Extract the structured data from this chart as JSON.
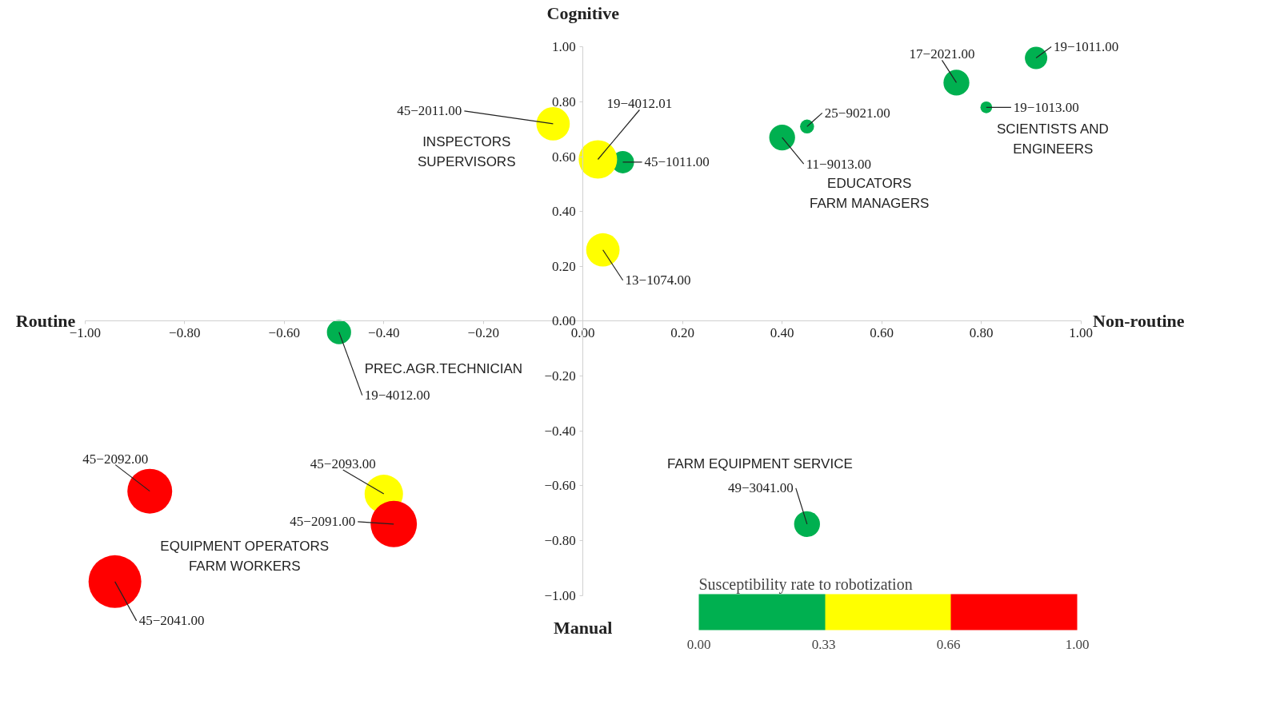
{
  "chart_data": {
    "type": "bubble",
    "grid": false,
    "xlim": [
      -1,
      1
    ],
    "ylim": [
      -1,
      1
    ],
    "xticks": [
      {
        "value": -1,
        "label": "−1.00"
      },
      {
        "value": -0.8,
        "label": "−0.80"
      },
      {
        "value": -0.6,
        "label": "−0.60"
      },
      {
        "value": -0.4,
        "label": "−0.40"
      },
      {
        "value": -0.2,
        "label": "−0.20"
      },
      {
        "value": 0,
        "label": "0.00"
      },
      {
        "value": 0.2,
        "label": "0.20"
      },
      {
        "value": 0.4,
        "label": "0.40"
      },
      {
        "value": 0.6,
        "label": "0.60"
      },
      {
        "value": 0.8,
        "label": "0.80"
      },
      {
        "value": 1,
        "label": "1.00"
      }
    ],
    "yticks": [
      {
        "value": -1,
        "label": "−1.00"
      },
      {
        "value": -0.8,
        "label": "−0.80"
      },
      {
        "value": -0.6,
        "label": "−0.60"
      },
      {
        "value": -0.4,
        "label": "−0.40"
      },
      {
        "value": -0.2,
        "label": "−0.20"
      },
      {
        "value": 0,
        "label": "0.00"
      },
      {
        "value": 0.2,
        "label": "0.20"
      },
      {
        "value": 0.4,
        "label": "0.40"
      },
      {
        "value": 0.6,
        "label": "0.60"
      },
      {
        "value": 0.8,
        "label": "0.80"
      },
      {
        "value": 1,
        "label": "1.00"
      }
    ],
    "clabel": "Susceptibility rate to robotization",
    "clim": [
      0,
      1
    ],
    "cticks": [
      {
        "value": 0,
        "label": "0.00"
      },
      {
        "value": 0.33,
        "label": "0.33"
      },
      {
        "value": 0.66,
        "label": "0.66"
      },
      {
        "value": 1,
        "label": "1.00"
      }
    ],
    "series": [
      {
        "color": "#00b050",
        "x": [
          0.91,
          0.75,
          0.81,
          0.45,
          0.4,
          0.08,
          -0.49,
          0.45
        ],
        "values": [
          0.96,
          0.87,
          0.78,
          0.71,
          0.67,
          0.58,
          -0.04,
          -0.74
        ],
        "sizes": [
          0.18,
          0.24,
          0.05,
          0.07,
          0.24,
          0.18,
          0.21,
          0.24
        ]
      },
      {
        "color": "#ffff00",
        "x": [
          -0.06,
          0.03,
          0.04,
          -0.4
        ],
        "values": [
          0.72,
          0.59,
          0.26,
          -0.63
        ],
        "sizes": [
          0.4,
          0.53,
          0.4,
          0.53
        ]
      },
      {
        "color": "#ff0000",
        "x": [
          -0.87,
          -0.38,
          -0.94
        ],
        "values": [
          -0.62,
          -0.74,
          -0.95
        ],
        "sizes": [
          0.72,
          0.77,
          1
        ]
      }
    ],
    "annotations": [
      "Routine",
      "Non-routine",
      "Cognitive",
      "Manual",
      {
        "text": "19−1011.00",
        "x": 0.91,
        "y": 0.96
      },
      {
        "text": "17−2021.00",
        "x": 0.75,
        "y": 0.87
      },
      {
        "text": "19−1013.00",
        "x": 0.81,
        "y": 0.78
      },
      {
        "text": "25−9021.00",
        "x": 0.45,
        "y": 0.71
      },
      {
        "text": "11−9013.00",
        "x": 0.4,
        "y": 0.67
      },
      {
        "text": "45−2011.00",
        "x": -0.06,
        "y": 0.72
      },
      {
        "text": "19−4012.01",
        "x": 0.03,
        "y": 0.59
      },
      {
        "text": "45−1011.00",
        "x": 0.08,
        "y": 0.58
      },
      {
        "text": "13−1074.00",
        "x": 0.04,
        "y": 0.26
      },
      {
        "text": "19−4012.00",
        "x": -0.49,
        "y": -0.04
      },
      {
        "text": "45−2092.00",
        "x": -0.87,
        "y": -0.62
      },
      {
        "text": "45−2093.00",
        "x": -0.4,
        "y": -0.63
      },
      {
        "text": "45−2091.00",
        "x": -0.38,
        "y": -0.74
      },
      {
        "text": "45−2041.00",
        "x": -0.94,
        "y": -0.95
      },
      {
        "text": "49−3041.00",
        "x": 0.45,
        "y": -0.74
      },
      "INSPECTORS\nSUPERVISORS",
      "SCIENTISTS AND\nENGINEERS",
      "EDUCATORS\nFARM MANAGERS",
      "PREC.AGR.TECHNICIAN",
      "EQUIPMENT OPERATORS\nFARM WORKERS",
      "FARM EQUIPMENT SERVICE"
    ]
  }
}
